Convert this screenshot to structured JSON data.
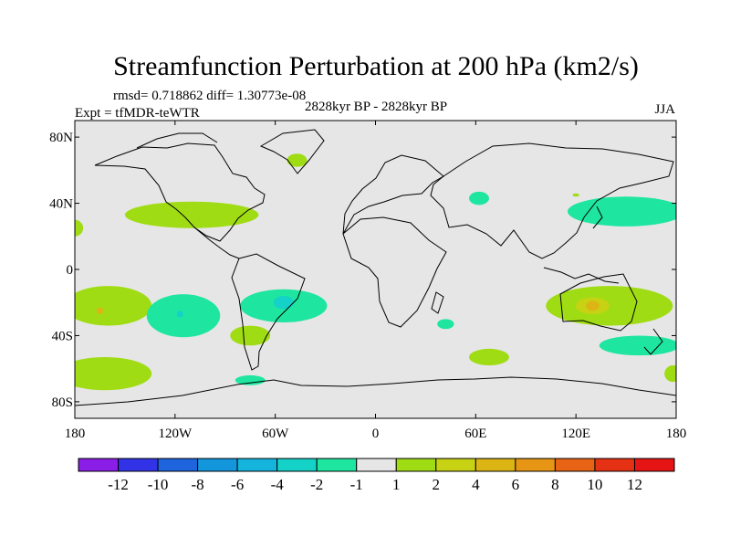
{
  "chart_data": {
    "type": "heatmap",
    "title": "Streamfunction Perturbation at 200 hPa (km2/s)",
    "stats_text": "rmsd= 0.718862 diff= 1.30773e-08",
    "experiment": "Expt = tfMDR-teWTR",
    "period": "2828kyr BP - 2828kyr BP",
    "season": "JJA",
    "x_axis": {
      "range": [
        -180,
        180
      ],
      "ticks": [
        {
          "value": -180,
          "label": "180"
        },
        {
          "value": -120,
          "label": "120W"
        },
        {
          "value": -60,
          "label": "60W"
        },
        {
          "value": 0,
          "label": "0"
        },
        {
          "value": 60,
          "label": "60E"
        },
        {
          "value": 120,
          "label": "120E"
        },
        {
          "value": 180,
          "label": "180"
        }
      ]
    },
    "y_axis": {
      "range": [
        -90,
        90
      ],
      "ticks": [
        {
          "value": 80,
          "label": "80N"
        },
        {
          "value": 40,
          "label": "40N"
        },
        {
          "value": 0,
          "label": "0"
        },
        {
          "value": -40,
          "label": "40S"
        },
        {
          "value": -80,
          "label": "80S"
        }
      ]
    },
    "background_color": "#e6e6e6",
    "colorbar": {
      "labels": [
        "-12",
        "-10",
        "-8",
        "-6",
        "-4",
        "-2",
        "-1",
        "1",
        "2",
        "4",
        "6",
        "8",
        "10",
        "12"
      ],
      "colors": [
        "#8a1ee6",
        "#3232e6",
        "#1e64dc",
        "#1496dc",
        "#14b4dc",
        "#14d2c8",
        "#1ee6a0",
        "#e6e6e6",
        "#a0dc14",
        "#c8d214",
        "#dcb414",
        "#e69614",
        "#e66414",
        "#e63214",
        "#e61414"
      ]
    },
    "regions": [
      {
        "name": "arctic-north-atlantic",
        "lon": -47,
        "lat": 66,
        "rlon": 6,
        "rlat": 4,
        "color": "#a0dc14"
      },
      {
        "name": "north-atlantic-pacific-band",
        "lon": -110,
        "lat": 33,
        "rlon": 40,
        "rlat": 8,
        "color": "#a0dc14"
      },
      {
        "name": "east-pacific-edge",
        "lon": -180,
        "lat": 25,
        "rlon": 5,
        "rlat": 5,
        "color": "#a0dc14"
      },
      {
        "name": "north-pacific",
        "lon": 150,
        "lat": 35,
        "rlon": 35,
        "rlat": 9,
        "color": "#1ee6a0"
      },
      {
        "name": "caspian",
        "lon": 62,
        "lat": 43,
        "rlon": 6,
        "rlat": 4,
        "color": "#1ee6a0"
      },
      {
        "name": "asia-small",
        "lon": 120,
        "lat": 45,
        "rlon": 2,
        "rlat": 1,
        "color": "#a0dc14"
      },
      {
        "name": "south-pacific-west",
        "lon": -160,
        "lat": -22,
        "rlon": 26,
        "rlat": 12,
        "color": "#a0dc14"
      },
      {
        "name": "south-pacific-west-core",
        "lon": -165,
        "lat": -25,
        "rlon": 2,
        "rlat": 2,
        "color": "#dcb414"
      },
      {
        "name": "southeast-pacific",
        "lon": -115,
        "lat": -28,
        "rlon": 22,
        "rlat": 13,
        "color": "#1ee6a0"
      },
      {
        "name": "southeast-pacific-core",
        "lon": -117,
        "lat": -27,
        "rlon": 2,
        "rlat": 2,
        "color": "#14d2c8"
      },
      {
        "name": "south-america",
        "lon": -55,
        "lat": -22,
        "rlon": 26,
        "rlat": 10,
        "color": "#1ee6a0"
      },
      {
        "name": "south-america-core",
        "lon": -55,
        "lat": -20,
        "rlon": 6,
        "rlat": 4,
        "color": "#14d2c8"
      },
      {
        "name": "south-pacific-east",
        "lon": -75,
        "lat": -40,
        "rlon": 12,
        "rlat": 6,
        "color": "#a0dc14"
      },
      {
        "name": "drake-passage",
        "lon": -75,
        "lat": -67,
        "rlon": 9,
        "rlat": 3,
        "color": "#1ee6a0"
      },
      {
        "name": "south-indian-small",
        "lon": 42,
        "lat": -33,
        "rlon": 5,
        "rlat": 3,
        "color": "#1ee6a0"
      },
      {
        "name": "southern-ocean-indian",
        "lon": 68,
        "lat": -53,
        "rlon": 12,
        "rlat": 5,
        "color": "#a0dc14"
      },
      {
        "name": "south-pacific-far-west",
        "lon": -162,
        "lat": -63,
        "rlon": 28,
        "rlat": 10,
        "color": "#a0dc14"
      },
      {
        "name": "australia",
        "lon": 140,
        "lat": -22,
        "rlon": 38,
        "rlat": 12,
        "color": "#a0dc14"
      },
      {
        "name": "australia-core",
        "lon": 130,
        "lat": -22,
        "rlon": 10,
        "rlat": 5,
        "color": "#c8d214"
      },
      {
        "name": "australia-inner",
        "lon": 130,
        "lat": -22,
        "rlon": 4,
        "rlat": 3,
        "color": "#dcb414"
      },
      {
        "name": "southwest-pacific",
        "lon": 158,
        "lat": -46,
        "rlon": 24,
        "rlat": 6,
        "color": "#1ee6a0"
      },
      {
        "name": "southwest-pacific-far",
        "lon": 178,
        "lat": -63,
        "rlon": 5,
        "rlat": 5,
        "color": "#a0dc14"
      }
    ]
  }
}
